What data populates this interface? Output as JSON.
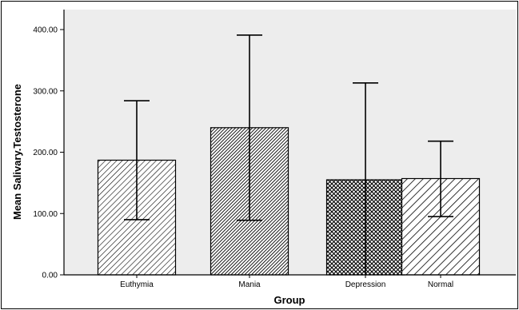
{
  "chart_data": {
    "type": "bar",
    "title": "",
    "xlabel": "Group",
    "ylabel": "Mean Salivary.Testosterone",
    "ylim": [
      0,
      420
    ],
    "yticks": [
      "0.00",
      "100.00",
      "200.00",
      "300.00",
      "400.00"
    ],
    "ytick_values": [
      0,
      100,
      200,
      300,
      400
    ],
    "categories": [
      "Euthymia",
      "Mania",
      "Depression",
      "Normal"
    ],
    "values": [
      187,
      240,
      155,
      157
    ],
    "error_low": [
      90,
      89,
      0,
      95
    ],
    "error_high": [
      284,
      391,
      313,
      218
    ],
    "grid": false,
    "legend": "none",
    "bar_patterns": [
      "diagonal-fine-light",
      "diagonal-dense-dark",
      "crosshatch",
      "diagonal-wide"
    ]
  }
}
